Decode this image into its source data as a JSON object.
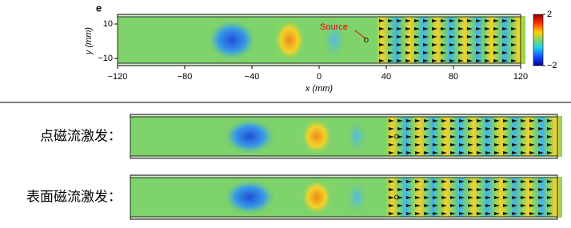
{
  "panel_e": {
    "label": "e",
    "source_label": "Source",
    "x_axis": {
      "title": "x (mm)",
      "ticks": [
        {
          "value": -120,
          "label": "−120"
        },
        {
          "value": -80,
          "label": "−80"
        },
        {
          "value": -40,
          "label": "−40"
        },
        {
          "value": 0,
          "label": "0"
        },
        {
          "value": 40,
          "label": "40"
        },
        {
          "value": 80,
          "label": "80"
        },
        {
          "value": 120,
          "label": "120"
        }
      ]
    },
    "y_axis": {
      "title": "y (mm)",
      "ticks": [
        {
          "value": 10,
          "label": "10"
        },
        {
          "value": -10,
          "label": "−10"
        }
      ]
    },
    "colorbar": {
      "ticks": [
        {
          "value": 2,
          "label": "2"
        },
        {
          "value": -2,
          "label": "−2"
        }
      ]
    }
  },
  "panels": [
    {
      "label": "点磁流激发："
    },
    {
      "label": "表面磁流激发："
    }
  ]
}
